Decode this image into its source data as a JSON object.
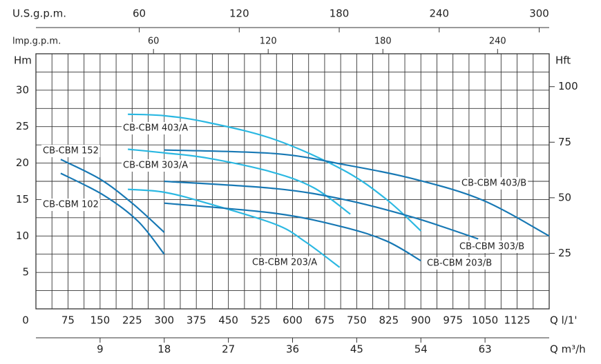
{
  "chart_data": {
    "type": "line",
    "xlabel": "Q l/1'",
    "ylabel": "Hm",
    "y2label": "Hft",
    "xlim": [
      0,
      1200
    ],
    "xticks": [
      0,
      75,
      150,
      225,
      300,
      375,
      450,
      525,
      600,
      675,
      750,
      825,
      900,
      975,
      1050,
      1125
    ],
    "ylim": [
      0,
      35
    ],
    "yticks": [
      5,
      10,
      15,
      20,
      25,
      30
    ],
    "y2lim": [
      0,
      114.8
    ],
    "y2ticks": [
      25,
      50,
      75,
      100
    ],
    "x2": {
      "label": "U.S.g.p.m.",
      "lim": [
        -2,
        306
      ],
      "ticks": [
        60,
        120,
        180,
        240,
        300
      ]
    },
    "x3": {
      "label": "lmp.g.p.m.",
      "lim": [
        -1.5,
        267
      ],
      "ticks": [
        60,
        120,
        180,
        240
      ]
    },
    "x4": {
      "label": "Q m³/h",
      "lim": [
        0,
        72
      ],
      "ticks": [
        9,
        18,
        27,
        36,
        45,
        54,
        63
      ]
    },
    "grid": true,
    "minor_grid": true,
    "series": [
      {
        "name": "CB-CBM 152",
        "color": "#1778b4",
        "x": [
          58,
          150,
          225,
          300
        ],
        "values": [
          20.5,
          17.8,
          14.5,
          10.5
        ]
      },
      {
        "name": "CB-CBM 102",
        "color": "#1778b4",
        "x": [
          58,
          158,
          239,
          300
        ],
        "values": [
          18.6,
          15.6,
          12,
          7.5
        ]
      },
      {
        "name": "CB-CBM 403/A",
        "color": "#2bb8e2",
        "x": [
          215,
          300,
          400,
          560,
          720,
          820,
          900
        ],
        "values": [
          26.7,
          26.5,
          25.6,
          23.2,
          19,
          15,
          10.7
        ]
      },
      {
        "name": "CB-CBM 303/A",
        "color": "#2bb8e2",
        "x": [
          215,
          300,
          400,
          550,
          650,
          735
        ],
        "values": [
          21.9,
          21.4,
          20.7,
          18.8,
          16.6,
          13
        ]
      },
      {
        "name": "CB-CBM 203/A",
        "color": "#2bb8e2",
        "x": [
          215,
          300,
          400,
          560,
          630,
          710
        ],
        "values": [
          16.4,
          16,
          14.5,
          11.6,
          9.2,
          5.7
        ]
      },
      {
        "name": "CB-CBM 403/B",
        "color": "#1778b4",
        "x": [
          300,
          560,
          720,
          885,
          1045,
          1200
        ],
        "values": [
          21.8,
          21.3,
          19.8,
          17.8,
          14.9,
          10
        ]
      },
      {
        "name": "CB-CBM 303/B",
        "color": "#1778b4",
        "x": [
          300,
          560,
          720,
          885,
          1034
        ],
        "values": [
          17.5,
          16.5,
          15,
          12.5,
          9.6
        ]
      },
      {
        "name": "CB-CBM 203/B",
        "color": "#1778b4",
        "x": [
          300,
          560,
          720,
          820,
          900
        ],
        "values": [
          14.5,
          13.1,
          11.2,
          9.3,
          6.6
        ]
      }
    ]
  }
}
